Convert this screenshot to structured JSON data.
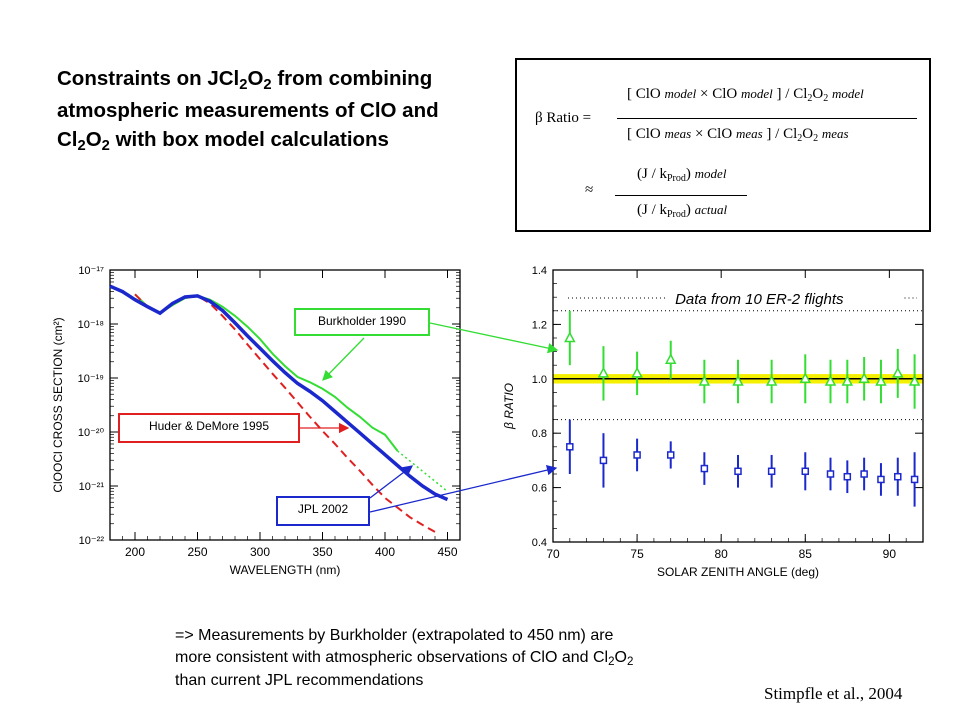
{
  "title": {
    "line1": "Constraints on JCl",
    "sub1": "2",
    "line1b": "O",
    "sub2": "2",
    "line1c": " from combining atmospheric measurements of ClO and Cl",
    "sub3": "2",
    "line1d": "O",
    "sub4": "2",
    "line1e": " with box model calculations"
  },
  "formula": {
    "lhs": "β Ratio =",
    "num_open": "[ ClO ",
    "model": "model",
    "times": " × ClO ",
    "num_close": " ] / Cl",
    "two": "2",
    "o": "O",
    "meas": "meas",
    "approx": "≈",
    "j_open": "(J / k",
    "prod": "Prod",
    "j_close": ") ",
    "actual": "actual"
  },
  "labels": {
    "burkholder": "Burkholder 1990",
    "huder": "Huder & DeMore 1995",
    "jpl": "JPL 2002"
  },
  "conclusion": {
    "line1": "=> Measurements by Burkholder (extrapolated to 450 nm) are",
    "line2a": "more consistent with atmospheric observations of ClO and Cl",
    "sub": "2",
    "line2b": "O",
    "line3": "than current JPL recommendations"
  },
  "citation": "Stimpfle et al., 2004",
  "colors": {
    "burkholder": "#33dd33",
    "huder": "#e02020",
    "jpl": "#1a28cc",
    "band": "#f5f000"
  },
  "chart_data": [
    {
      "type": "line",
      "xlabel": "WAVELENGTH (nm)",
      "ylabel": "ClOOCl CROSS SECTION (cm²)",
      "xlim": [
        180,
        460
      ],
      "ylim_log10": [
        -22,
        -17
      ],
      "xticks": [
        "200",
        "250",
        "300",
        "350",
        "400",
        "450"
      ],
      "yticks": [
        "10⁻¹⁷",
        "10⁻¹⁸",
        "10⁻¹⁹",
        "10⁻²⁰",
        "10⁻²¹",
        "10⁻²²"
      ],
      "scale": "log",
      "series": [
        {
          "name": "Burkholder 1990",
          "color": "#33dd33",
          "x": [
            200,
            210,
            220,
            230,
            240,
            250,
            260,
            270,
            280,
            290,
            300,
            310,
            320,
            330,
            340,
            350,
            360,
            370,
            380,
            390,
            400,
            410
          ],
          "log10_y": [
            -17.45,
            -17.68,
            -17.8,
            -17.65,
            -17.52,
            -17.48,
            -17.55,
            -17.68,
            -17.85,
            -18.05,
            -18.28,
            -18.55,
            -18.78,
            -18.98,
            -19.08,
            -19.2,
            -19.35,
            -19.55,
            -19.72,
            -19.92,
            -20.05,
            -20.35
          ],
          "extrapolated": {
            "x": [
              410,
              450
            ],
            "log10_y": [
              -20.35,
              -21.1
            ]
          }
        },
        {
          "name": "Huder & DeMore 1995",
          "color": "#e02020",
          "dashed": true,
          "x": [
            200,
            210,
            220,
            230,
            240,
            250,
            260,
            270,
            280,
            290,
            300,
            310,
            320,
            330,
            340,
            350,
            360,
            370,
            380,
            390,
            400,
            410,
            420,
            430,
            440
          ],
          "log10_y": [
            -17.45,
            -17.68,
            -17.8,
            -17.62,
            -17.5,
            -17.48,
            -17.62,
            -17.85,
            -18.1,
            -18.38,
            -18.65,
            -18.92,
            -19.18,
            -19.45,
            -19.72,
            -19.98,
            -20.22,
            -20.48,
            -20.72,
            -20.98,
            -21.22,
            -21.4,
            -21.58,
            -21.72,
            -21.85
          ]
        },
        {
          "name": "JPL 2002",
          "color": "#1a28cc",
          "x": [
            180,
            190,
            200,
            210,
            220,
            230,
            240,
            250,
            260,
            270,
            280,
            290,
            300,
            310,
            320,
            330,
            340,
            350,
            360,
            370,
            380,
            390,
            400,
            410,
            420,
            430,
            440,
            450
          ],
          "log10_y": [
            -17.3,
            -17.4,
            -17.55,
            -17.68,
            -17.8,
            -17.62,
            -17.5,
            -17.48,
            -17.58,
            -17.75,
            -17.98,
            -18.22,
            -18.45,
            -18.68,
            -18.9,
            -19.1,
            -19.25,
            -19.42,
            -19.62,
            -19.82,
            -20.02,
            -20.22,
            -20.42,
            -20.62,
            -20.82,
            -21.0,
            -21.15,
            -21.25
          ]
        }
      ]
    },
    {
      "type": "scatter",
      "title": "Data from 10 ER-2 flights",
      "xlabel": "SOLAR ZENITH ANGLE (deg)",
      "ylabel": "β RATIO",
      "xlim": [
        70,
        92
      ],
      "ylim": [
        0.4,
        1.4
      ],
      "xticks": [
        "70",
        "75",
        "80",
        "85",
        "90"
      ],
      "yticks": [
        "0.4",
        "0.6",
        "0.8",
        "1.0",
        "1.2",
        "1.4"
      ],
      "reference_lines": [
        1.25,
        0.85
      ],
      "band": [
        0.99,
        1.01
      ],
      "series": [
        {
          "name": "Burkholder 1990",
          "color": "#33dd33",
          "marker": "triangle",
          "x": [
            71,
            73,
            75,
            77,
            79,
            81,
            83,
            85,
            86.5,
            87.5,
            88.5,
            89.5,
            90.5,
            91.5
          ],
          "y": [
            1.15,
            1.02,
            1.02,
            1.07,
            0.99,
            0.99,
            0.99,
            1.0,
            0.99,
            0.99,
            1.0,
            0.99,
            1.02,
            0.99
          ],
          "err": [
            0.1,
            0.1,
            0.08,
            0.07,
            0.08,
            0.08,
            0.08,
            0.09,
            0.08,
            0.08,
            0.08,
            0.08,
            0.09,
            0.1
          ]
        },
        {
          "name": "JPL 2002",
          "color": "#1a28cc",
          "marker": "square",
          "x": [
            71,
            73,
            75,
            77,
            79,
            81,
            83,
            85,
            86.5,
            87.5,
            88.5,
            89.5,
            90.5,
            91.5
          ],
          "y": [
            0.75,
            0.7,
            0.72,
            0.72,
            0.67,
            0.66,
            0.66,
            0.66,
            0.65,
            0.64,
            0.65,
            0.63,
            0.64,
            0.63
          ],
          "err": [
            0.1,
            0.1,
            0.06,
            0.05,
            0.06,
            0.06,
            0.06,
            0.07,
            0.06,
            0.06,
            0.06,
            0.06,
            0.07,
            0.1
          ]
        }
      ]
    }
  ]
}
